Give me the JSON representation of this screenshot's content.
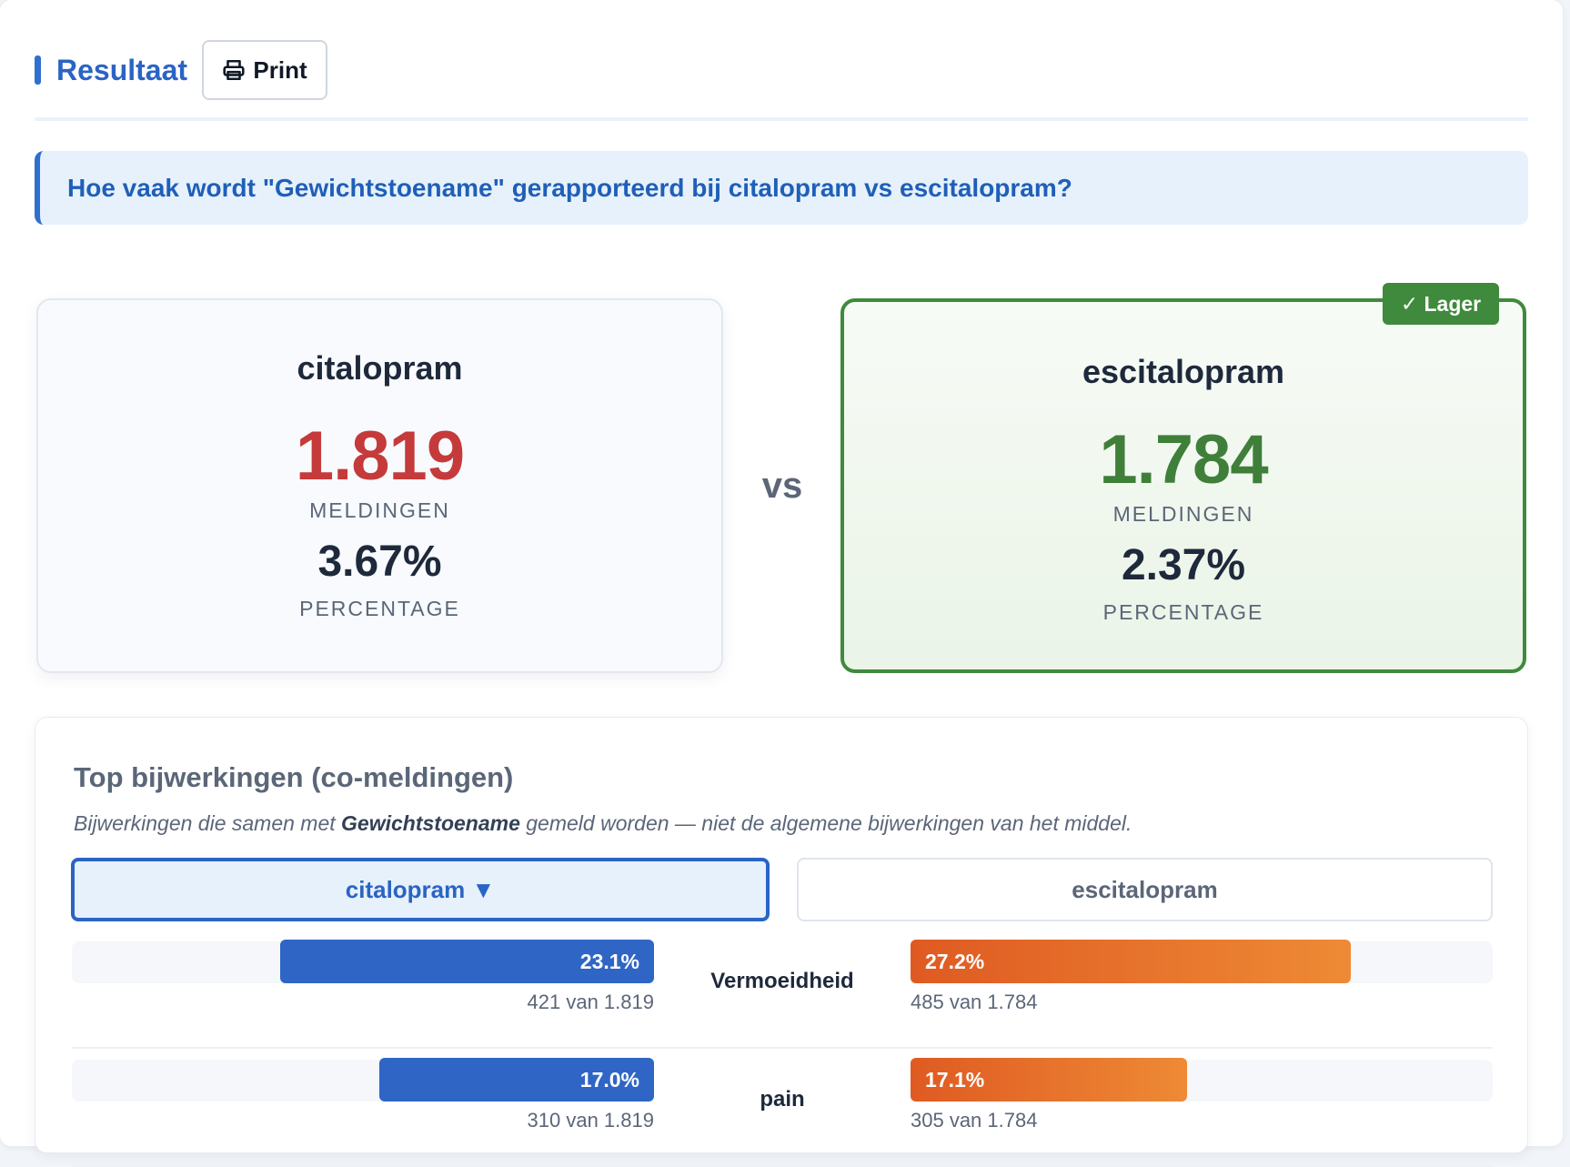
{
  "header": {
    "title": "Resultaat",
    "print_label": "Print"
  },
  "question": "Hoe vaak wordt \"Gewichtstoename\" gerapporteerd bij citalopram vs escitalopram?",
  "comparison": {
    "left": {
      "drug": "citalopram",
      "count": "1.819",
      "count_label": "MELDINGEN",
      "percentage": "3.67%",
      "percentage_label": "PERCENTAGE"
    },
    "vs_label": "vs",
    "right": {
      "drug": "escitalopram",
      "count": "1.784",
      "count_label": "MELDINGEN",
      "percentage": "2.37%",
      "percentage_label": "PERCENTAGE",
      "badge": "✓ Lager"
    }
  },
  "effects": {
    "title": "Top bijwerkingen (co-meldingen)",
    "desc_before": "Bijwerkingen die samen met ",
    "desc_bold": "Gewichtstoename",
    "desc_after": " gemeld worden — niet de algemene bijwerkingen van het middel.",
    "tabs": {
      "left": "citalopram ▼",
      "right": "escitalopram"
    },
    "rows": [
      {
        "name": "Vermoeidheid",
        "left_pct_label": "23.1%",
        "left_pct": 23.1,
        "left_count": "421 van 1.819",
        "right_pct_label": "27.2%",
        "right_pct": 27.2,
        "right_count": "485 van 1.784"
      },
      {
        "name": "pain",
        "left_pct_label": "17.0%",
        "left_pct": 17.0,
        "left_count": "310 van 1.819",
        "right_pct_label": "17.1%",
        "right_pct": 17.1,
        "right_count": "305 van 1.784"
      }
    ]
  },
  "colors": {
    "accent_blue": "#2a64c4",
    "higher_red": "#c53a3a",
    "lower_green": "#3f8a3c",
    "bar_left": "#2f66c5",
    "bar_right": "#e9752d"
  }
}
